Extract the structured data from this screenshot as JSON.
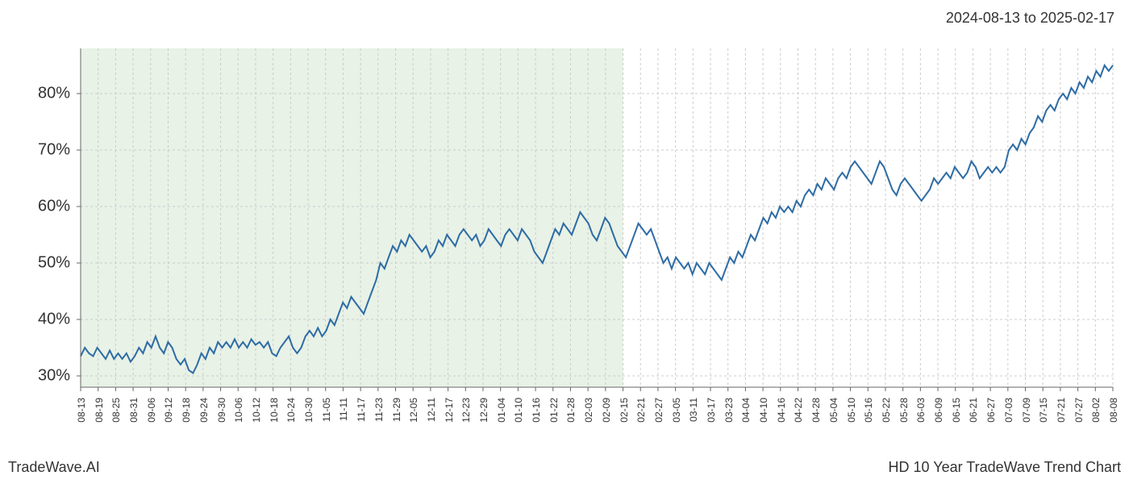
{
  "date_range": "2024-08-13 to 2025-02-17",
  "footer": {
    "left": "TradeWave.AI",
    "right": "HD 10 Year TradeWave Trend Chart"
  },
  "chart": {
    "type": "line",
    "background_color": "#ffffff",
    "highlight_region": {
      "fill": "#d5e8d4",
      "opacity": 0.55,
      "x_start_index": 0,
      "x_end_index": 31
    },
    "line": {
      "color": "#2e6ca4",
      "width": 2
    },
    "grid": {
      "color": "#cccccc",
      "dash": "3,3"
    },
    "axis_color": "#666666",
    "y_axis": {
      "min": 28,
      "max": 88,
      "ticks": [
        30,
        40,
        50,
        60,
        70,
        80
      ],
      "tick_labels": [
        "30%",
        "40%",
        "50%",
        "60%",
        "70%",
        "80%"
      ],
      "label_fontsize": 20
    },
    "x_axis": {
      "labels": [
        "08-13",
        "08-19",
        "08-25",
        "08-31",
        "09-06",
        "09-12",
        "09-18",
        "09-24",
        "09-30",
        "10-06",
        "10-12",
        "10-18",
        "10-24",
        "10-30",
        "11-05",
        "11-11",
        "11-17",
        "11-23",
        "11-29",
        "12-05",
        "12-11",
        "12-17",
        "12-23",
        "12-29",
        "01-04",
        "01-10",
        "01-16",
        "01-22",
        "01-28",
        "02-03",
        "02-09",
        "02-15",
        "02-21",
        "02-27",
        "03-05",
        "03-11",
        "03-17",
        "03-23",
        "04-04",
        "04-10",
        "04-16",
        "04-22",
        "04-28",
        "05-04",
        "05-10",
        "05-16",
        "05-22",
        "05-28",
        "06-03",
        "06-09",
        "06-15",
        "06-21",
        "06-27",
        "07-03",
        "07-09",
        "07-15",
        "07-21",
        "07-27",
        "08-02",
        "08-08"
      ],
      "label_fontsize": 12,
      "rotation": -90
    },
    "series": [
      33.5,
      35,
      34,
      33.5,
      35,
      34,
      33,
      34.5,
      33,
      34,
      33,
      34,
      32.5,
      33.5,
      35,
      34,
      36,
      35,
      37,
      35,
      34,
      36,
      35,
      33,
      32,
      33,
      31,
      30.5,
      32,
      34,
      33,
      35,
      34,
      36,
      35,
      36,
      35,
      36.5,
      35,
      36,
      35,
      36.5,
      35.5,
      36,
      35,
      36,
      34,
      33.5,
      35,
      36,
      37,
      35,
      34,
      35,
      37,
      38,
      37,
      38.5,
      37,
      38,
      40,
      39,
      41,
      43,
      42,
      44,
      43,
      42,
      41,
      43,
      45,
      47,
      50,
      49,
      51,
      53,
      52,
      54,
      53,
      55,
      54,
      53,
      52,
      53,
      51,
      52,
      54,
      53,
      55,
      54,
      53,
      55,
      56,
      55,
      54,
      55,
      53,
      54,
      56,
      55,
      54,
      53,
      55,
      56,
      55,
      54,
      56,
      55,
      54,
      52,
      51,
      50,
      52,
      54,
      56,
      55,
      57,
      56,
      55,
      57,
      59,
      58,
      57,
      55,
      54,
      56,
      58,
      57,
      55,
      53,
      52,
      51,
      53,
      55,
      57,
      56,
      55,
      56,
      54,
      52,
      50,
      51,
      49,
      51,
      50,
      49,
      50,
      48,
      50,
      49,
      48,
      50,
      49,
      48,
      47,
      49,
      51,
      50,
      52,
      51,
      53,
      55,
      54,
      56,
      58,
      57,
      59,
      58,
      60,
      59,
      60,
      59,
      61,
      60,
      62,
      63,
      62,
      64,
      63,
      65,
      64,
      63,
      65,
      66,
      65,
      67,
      68,
      67,
      66,
      65,
      64,
      66,
      68,
      67,
      65,
      63,
      62,
      64,
      65,
      64,
      63,
      62,
      61,
      62,
      63,
      65,
      64,
      65,
      66,
      65,
      67,
      66,
      65,
      66,
      68,
      67,
      65,
      66,
      67,
      66,
      67,
      66,
      67,
      70,
      71,
      70,
      72,
      71,
      73,
      74,
      76,
      75,
      77,
      78,
      77,
      79,
      80,
      79,
      81,
      80,
      82,
      81,
      83,
      82,
      84,
      83,
      85,
      84,
      85
    ]
  }
}
